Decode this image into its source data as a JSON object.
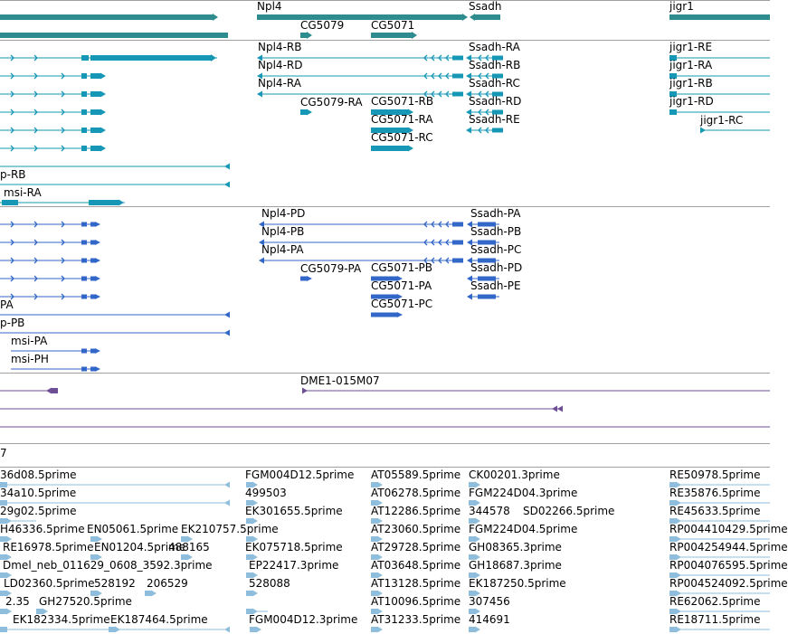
{
  "colors": {
    "gene": "#2e8b8e",
    "transcript": "#1597b5",
    "protein": "#3266c8",
    "clone": "#6e4f96",
    "est": "#8fbedc",
    "divider": "#a0a0a0"
  },
  "icons": [
    "arrow-right-icon",
    "arrow-left-icon"
  ],
  "tracks": {
    "genes": {
      "labels": [
        "Npl4",
        "Ssadh",
        "jigr1",
        "CG5079",
        "CG5071"
      ]
    },
    "transcripts": {
      "labels": [
        "Npl4-RB",
        "Npl4-RD",
        "Npl4-RA",
        "Ssadh-RA",
        "Ssadh-RB",
        "Ssadh-RC",
        "Ssadh-RD",
        "Ssadh-RE",
        "CG5079-RA",
        "CG5071-RB",
        "CG5071-RA",
        "CG5071-RC",
        "jigr1-RE",
        "jigr1-RA",
        "jigr1-RB",
        "jigr1-RD",
        "jigr1-RC",
        "p-RB",
        "msi-RA"
      ]
    },
    "proteins": {
      "labels": [
        "Npl4-PD",
        "Npl4-PB",
        "Npl4-PA",
        "Ssadh-PA",
        "Ssadh-PB",
        "Ssadh-PC",
        "Ssadh-PD",
        "Ssadh-PE",
        "CG5079-PA",
        "CG5071-PB",
        "CG5071-PA",
        "CG5071-PC",
        "PA",
        "p-PB",
        "msi-PA",
        "msi-PH"
      ]
    },
    "clones": {
      "labels": [
        "DME1-015M07",
        "7"
      ]
    },
    "ests": {
      "labels": [
        "36d08.5prime",
        "34a10.5prime",
        "29g02.5prime",
        "H46336.5prime",
        "EN05061.5prime",
        "EK210757.5prime",
        "RE16978.5prime",
        "EN01204.5prime",
        "488165",
        "Dmel_neb_011629_0608_3592.3prime",
        "LD02360.5prime",
        "528192",
        "206529",
        "2.35",
        "GH27520.5prime",
        "EK182334.5prime",
        "EK187464.5prime",
        "FGM004D12.5prime",
        "499503",
        "EK301655.5prime",
        "EK075718.5prime",
        "EP22417.3prime",
        "528088",
        "FGM004D12.3prime",
        "AT05589.5prime",
        "AT06278.5prime",
        "AT12286.5prime",
        "AT23060.5prime",
        "AT29728.5prime",
        "AT03648.5prime",
        "AT13128.5prime",
        "AT10096.5prime",
        "AT31233.5prime",
        "CK00201.3prime",
        "FGM224D04.3prime",
        "344578",
        "SD02266.5prime",
        "FGM224D04.5prime",
        "GH08365.3prime",
        "GH18687.3prime",
        "EK187250.5prime",
        "307456",
        "414691",
        "RE50978.5prime",
        "RE35876.5prime",
        "RE45633.5prime",
        "RP004410429.5prime",
        "RP004254944.5prime",
        "RP004076595.5prime",
        "RP004524092.5prime",
        "RE62062.5prime",
        "RE18711.5prime"
      ]
    }
  }
}
